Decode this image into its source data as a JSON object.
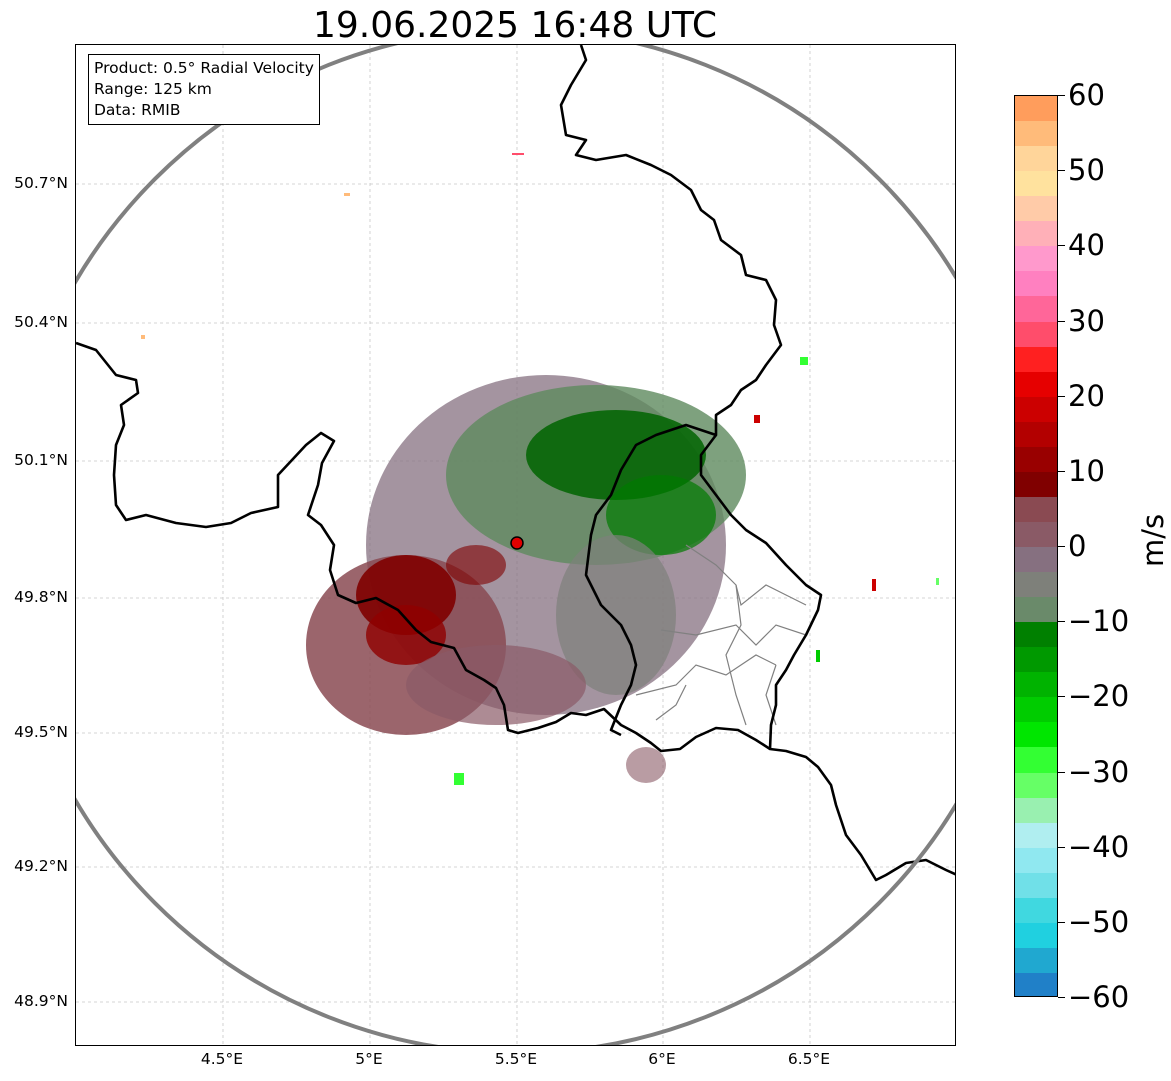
{
  "title": "19.06.2025 16:48 UTC",
  "info": {
    "product": "Product: 0.5° Radial Velocity",
    "range": "Range: 125 km",
    "data": "Data: RMIB"
  },
  "lat_labels": [
    "50.7°N",
    "50.4°N",
    "50.1°N",
    "49.8°N",
    "49.5°N",
    "49.2°N",
    "48.9°N"
  ],
  "lon_labels": [
    "4.5°E",
    "5°E",
    "5.5°E",
    "6°E",
    "6.5°E"
  ],
  "colorbar": {
    "unit": "m/s",
    "ticks": [
      "60",
      "50",
      "40",
      "30",
      "20",
      "10",
      "0",
      "−10",
      "−20",
      "−30",
      "−40",
      "−50",
      "−60"
    ],
    "colors_top_to_bottom": [
      "#ff9d5c",
      "#ffbb7a",
      "#ffd59a",
      "#ffe29e",
      "#ffcba8",
      "#ffb0b8",
      "#ff99cc",
      "#ff80c0",
      "#ff6699",
      "#ff4d6b",
      "#ff2020",
      "#e60000",
      "#cc0000",
      "#b30000",
      "#990000",
      "#800000",
      "#8a4a52",
      "#8a5a66",
      "#867080",
      "#7e807a",
      "#6a8a6a",
      "#008000",
      "#009900",
      "#00b300",
      "#00cc00",
      "#00e600",
      "#33ff33",
      "#66ff66",
      "#99f0b0",
      "#b0eef0",
      "#90e8f0",
      "#70e0e8",
      "#40d8e0",
      "#20d0e0",
      "#20a8d0",
      "#2080c8"
    ],
    "accent_sampled": [
      "#8a5a66",
      "#006400",
      "#800000"
    ]
  },
  "map": {
    "radar_range_ring_color": "#808080",
    "radar_site_color": "#e00000"
  }
}
